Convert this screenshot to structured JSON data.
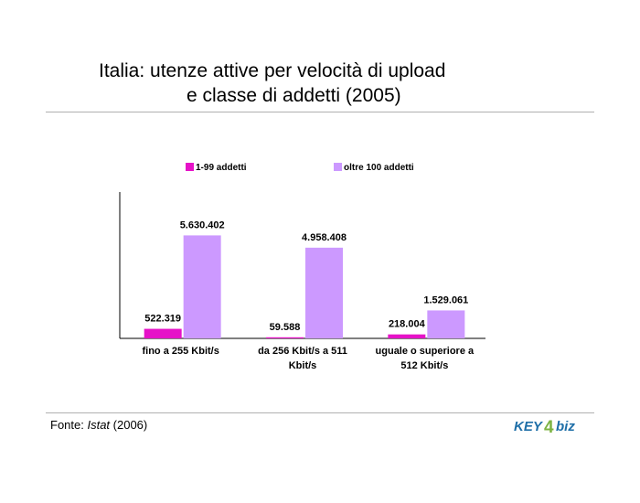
{
  "header": {
    "title_line1": "Italia: utenze attive per velocità di upload",
    "title_line2": "e classe di addetti (2005)"
  },
  "footer": {
    "source_prefix": "Fonte: ",
    "source_name": "Istat",
    "source_year": " (2006)",
    "logo_text_1": "KEY",
    "logo_text_2": "4",
    "logo_text_3": "biz"
  },
  "colors": {
    "series1": "#e612c8",
    "series2": "#cc99ff",
    "logo_blue": "#1f6fa8",
    "logo_green": "#7cb342"
  },
  "chart_data": {
    "type": "bar",
    "title": "",
    "xlabel": "",
    "ylabel": "",
    "categories": [
      [
        "fino a 255 Kbit/s"
      ],
      [
        "da 256 Kbit/s a 511",
        "Kbit/s"
      ],
      [
        "uguale o superiore a",
        "512 Kbit/s"
      ]
    ],
    "series": [
      {
        "name": "1-99 addetti",
        "values": [
          522319,
          59588,
          218004
        ],
        "labels": [
          "522.319",
          "59.588",
          "218.004"
        ],
        "color": "#e612c8"
      },
      {
        "name": "oltre 100 addetti",
        "values": [
          5630402,
          4958408,
          1529061
        ],
        "labels": [
          "5.630.402",
          "4.958.408",
          "1.529.061"
        ],
        "color": "#cc99ff"
      }
    ],
    "ylim": [
      0,
      8000000
    ],
    "grid": false,
    "legend_position": "top"
  }
}
